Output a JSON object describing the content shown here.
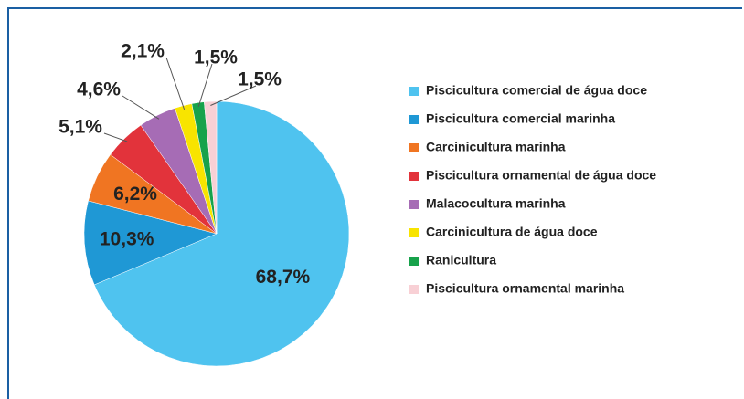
{
  "chart_data": {
    "type": "pie",
    "categories": [
      "Piscicultura comercial de água doce",
      "Piscicultura comercial marinha",
      "Carcinicultura marinha",
      "Piscicultura ornamental de água doce",
      "Malacocultura marinha",
      "Carcinicultura de água doce",
      "Ranicultura",
      "Piscicultura ornamental marinha"
    ],
    "values": [
      68.7,
      10.3,
      6.2,
      5.1,
      4.6,
      2.1,
      1.5,
      1.5
    ],
    "value_labels": [
      "68,7%",
      "10,3%",
      "6,2%",
      "5,1%",
      "4,6%",
      "2,1%",
      "1,5%",
      "1,5%"
    ],
    "colors": [
      "#4fc3ef",
      "#1f98d5",
      "#f07522",
      "#e2333b",
      "#a66cb5",
      "#f8e400",
      "#17a24b",
      "#f8d0d5"
    ],
    "legend": "right"
  }
}
